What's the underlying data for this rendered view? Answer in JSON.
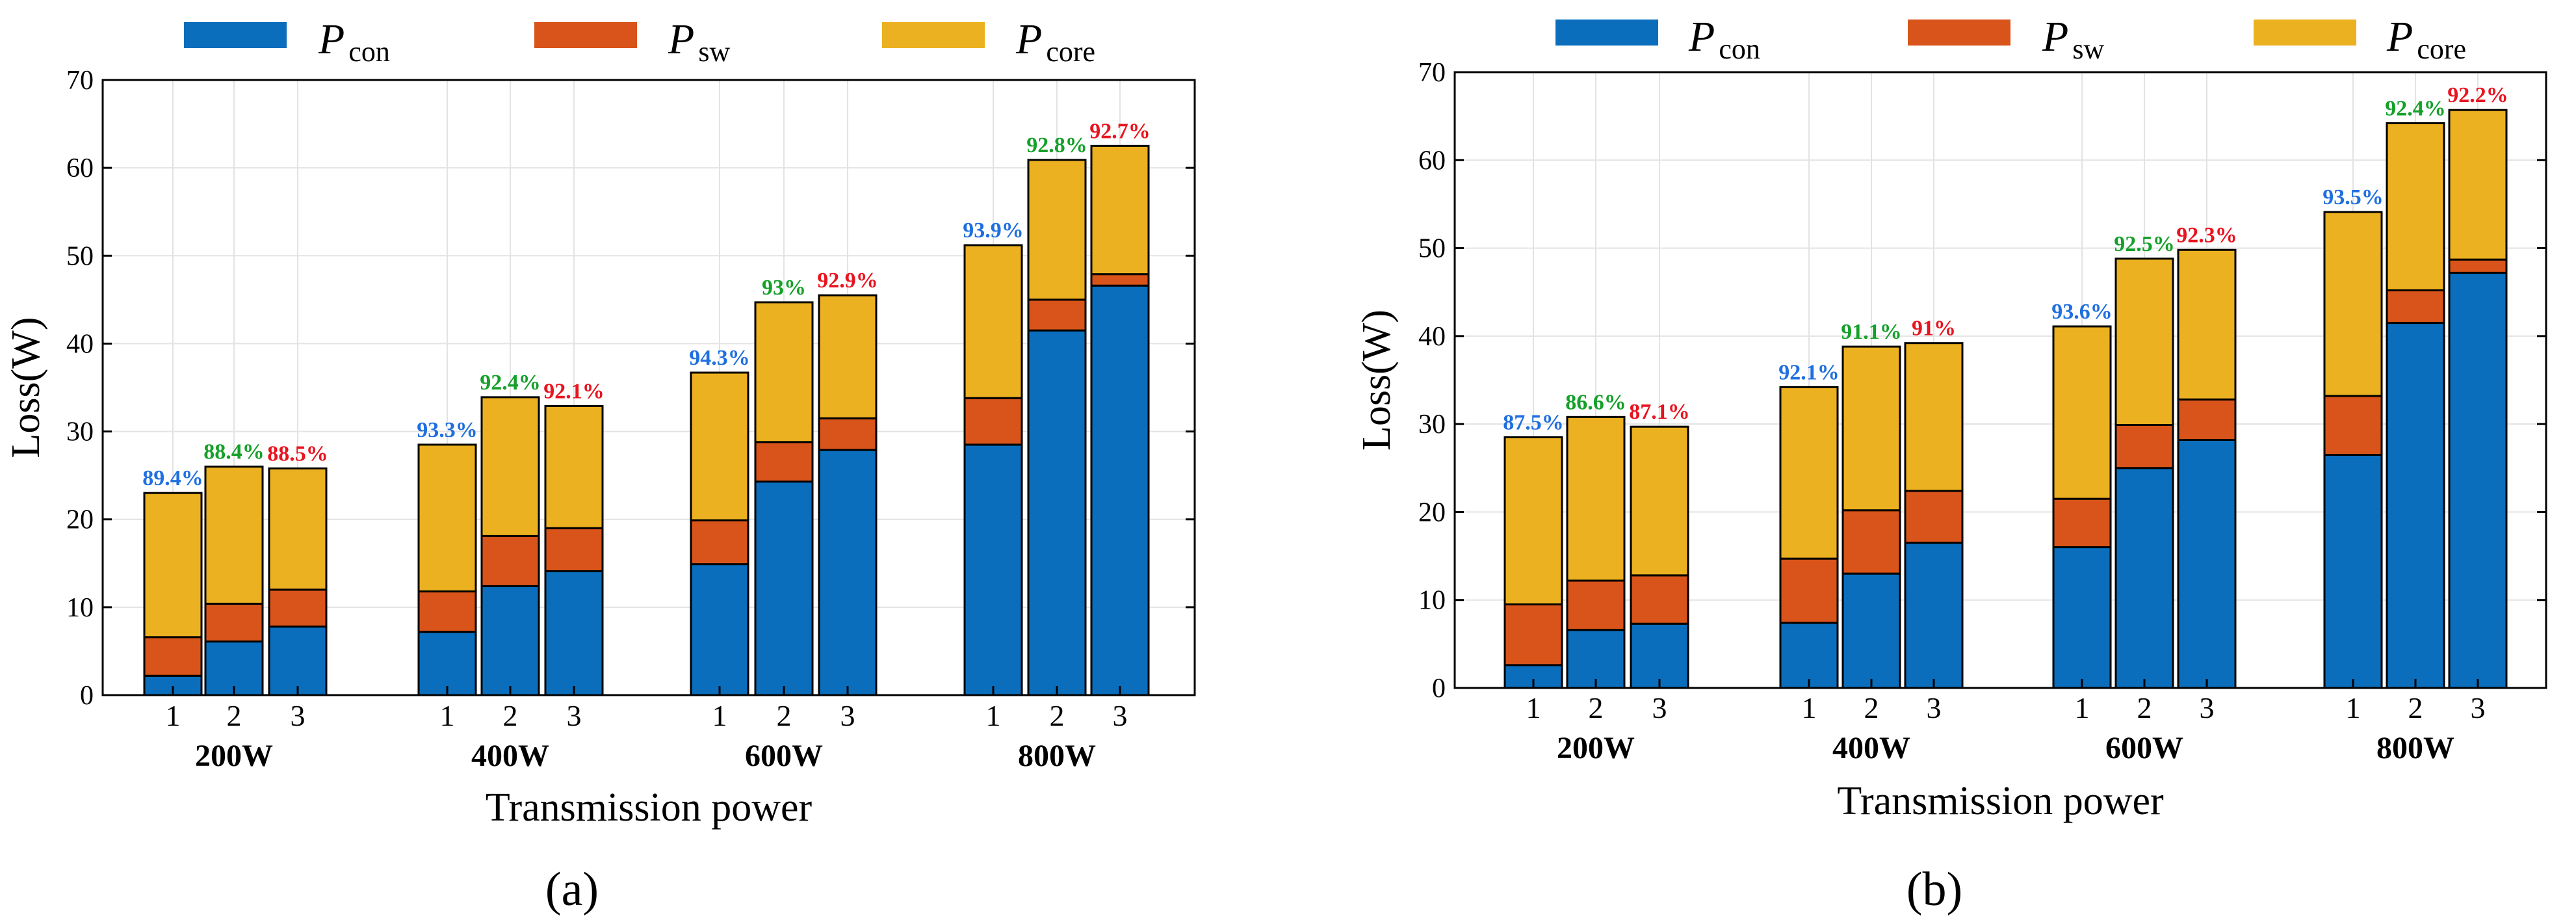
{
  "colors": {
    "con": "#0a6ebd",
    "sw": "#d9541a",
    "core": "#ecb120",
    "eff1": "#1f6fe0",
    "eff2": "#15a02a",
    "eff3": "#e8141f"
  },
  "legend": [
    {
      "key": "con",
      "main": "P",
      "sub": "con"
    },
    {
      "key": "sw",
      "main": "P",
      "sub": "sw"
    },
    {
      "key": "core",
      "main": "P",
      "sub": "core"
    }
  ],
  "chart_data": [
    {
      "type": "bar",
      "stacked": true,
      "panel_label": "(a)",
      "title": "",
      "xlabel": "Transmission power",
      "ylabel": "Loss(W)",
      "ylim": [
        0,
        70
      ],
      "yticks": [
        0,
        10,
        20,
        30,
        40,
        50,
        60,
        70
      ],
      "grid": true,
      "legend_position": "top",
      "groups": [
        "200W",
        "400W",
        "600W",
        "800W"
      ],
      "bar_labels": [
        "1",
        "2",
        "3"
      ],
      "series": [
        {
          "name": "Pcon",
          "key": "con",
          "values": [
            [
              2.2,
              6.1,
              7.8
            ],
            [
              7.2,
              12.4,
              14.1
            ],
            [
              14.9,
              24.3,
              27.9
            ],
            [
              28.5,
              41.5,
              46.6
            ]
          ]
        },
        {
          "name": "Psw",
          "key": "sw",
          "values": [
            [
              4.4,
              4.3,
              4.2
            ],
            [
              4.6,
              5.7,
              4.9
            ],
            [
              5.0,
              4.5,
              3.6
            ],
            [
              5.3,
              3.5,
              1.3
            ]
          ]
        },
        {
          "name": "Pcore",
          "key": "core",
          "values": [
            [
              16.4,
              15.6,
              13.8
            ],
            [
              16.7,
              15.8,
              13.9
            ],
            [
              16.8,
              15.9,
              14.0
            ],
            [
              17.4,
              15.9,
              14.6
            ]
          ]
        }
      ],
      "efficiency": [
        [
          "89.4%",
          "88.4%",
          "88.5%"
        ],
        [
          "93.3%",
          "92.4%",
          "92.1%"
        ],
        [
          "94.3%",
          "93%",
          "92.9%"
        ],
        [
          "93.9%",
          "92.8%",
          "92.7%"
        ]
      ]
    },
    {
      "type": "bar",
      "stacked": true,
      "panel_label": "(b)",
      "title": "",
      "xlabel": "Transmission power",
      "ylabel": "Loss(W)",
      "ylim": [
        0,
        70
      ],
      "yticks": [
        0,
        10,
        20,
        30,
        40,
        50,
        60,
        70
      ],
      "grid": true,
      "legend_position": "top",
      "groups": [
        "200W",
        "400W",
        "600W",
        "800W"
      ],
      "bar_labels": [
        "1",
        "2",
        "3"
      ],
      "series": [
        {
          "name": "Pcon",
          "key": "con",
          "values": [
            [
              2.6,
              6.6,
              7.3
            ],
            [
              7.4,
              13.0,
              16.5
            ],
            [
              16.0,
              25.0,
              28.2
            ],
            [
              26.5,
              41.5,
              47.2
            ]
          ]
        },
        {
          "name": "Psw",
          "key": "sw",
          "values": [
            [
              6.9,
              5.6,
              5.5
            ],
            [
              7.3,
              7.2,
              5.9
            ],
            [
              5.5,
              4.9,
              4.6
            ],
            [
              6.7,
              3.7,
              1.5
            ]
          ]
        },
        {
          "name": "Pcore",
          "key": "core",
          "values": [
            [
              19.0,
              18.6,
              16.9
            ],
            [
              19.5,
              18.6,
              16.8
            ],
            [
              19.6,
              18.9,
              17.0
            ],
            [
              20.9,
              19.0,
              17.0
            ]
          ]
        }
      ],
      "efficiency": [
        [
          "87.5%",
          "86.6%",
          "87.1%"
        ],
        [
          "92.1%",
          "91.1%",
          "91%"
        ],
        [
          "93.6%",
          "92.5%",
          "92.3%"
        ],
        [
          "93.5%",
          "92.4%",
          "92.2%"
        ]
      ]
    }
  ]
}
